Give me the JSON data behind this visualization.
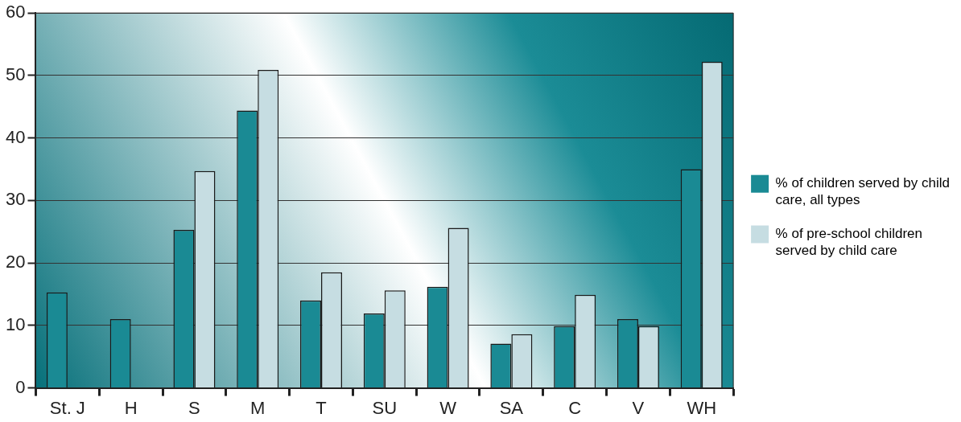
{
  "chart_data": {
    "type": "bar",
    "categories": [
      "St. J",
      "H",
      "S",
      "M",
      "T",
      "SU",
      "W",
      "SA",
      "C",
      "V",
      "WH"
    ],
    "series": [
      {
        "name": "% of children served by child care, all types",
        "color": "#1a8a94",
        "values": [
          15.3,
          11.0,
          25.3,
          44.4,
          14.0,
          11.9,
          16.2,
          7.1,
          9.9,
          11.0,
          35.0
        ]
      },
      {
        "name": "% of pre-school children served by child care",
        "color": "#c6dde2",
        "values": [
          null,
          null,
          34.7,
          50.9,
          18.5,
          15.6,
          25.6,
          8.6,
          14.9,
          9.9,
          52.2
        ]
      }
    ],
    "ylim": [
      0,
      60
    ],
    "yticks": [
      0,
      10,
      20,
      30,
      40,
      50,
      60
    ],
    "grid": "y",
    "legend": "right"
  }
}
